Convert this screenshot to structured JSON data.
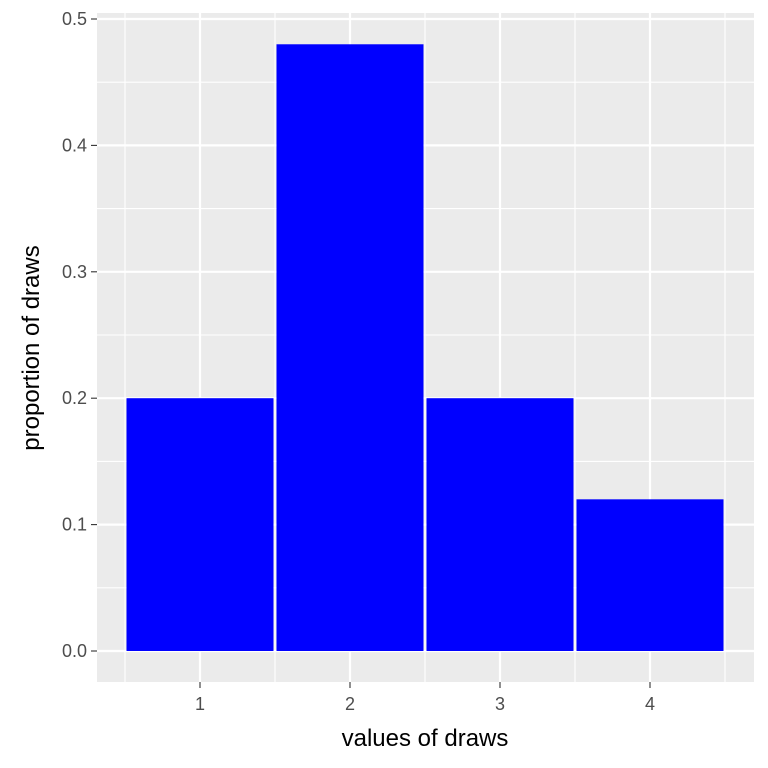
{
  "chart_data": {
    "type": "bar",
    "categories": [
      "1",
      "2",
      "3",
      "4"
    ],
    "values": [
      0.2,
      0.48,
      0.2,
      0.12
    ],
    "xlabel": "values of draws",
    "ylabel": "proportion of draws",
    "ylim": [
      0,
      0.5
    ],
    "y_ticks": [
      0.0,
      0.1,
      0.2,
      0.3,
      0.4,
      0.5
    ],
    "y_tick_labels": [
      "0.0",
      "0.1",
      "0.2",
      "0.3",
      "0.4",
      "0.5"
    ],
    "grid": true,
    "legend": "none",
    "colors": {
      "bar_fill": "#0000ff",
      "panel_background": "#ebebeb",
      "grid_line": "#ffffff"
    }
  }
}
